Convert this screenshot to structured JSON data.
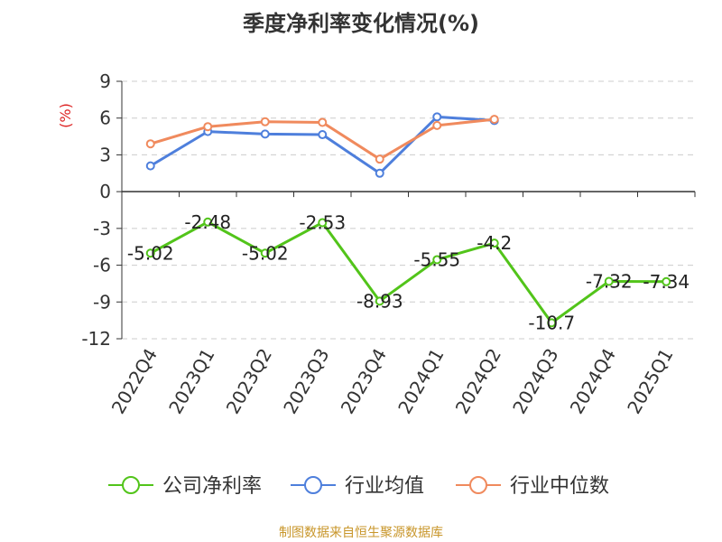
{
  "chart_data": {
    "type": "line",
    "title": "季度净利率变化情况(%)",
    "unit_label": "(%)",
    "categories": [
      "2022Q4",
      "2023Q1",
      "2023Q2",
      "2023Q3",
      "2023Q4",
      "2024Q1",
      "2024Q2",
      "2024Q3",
      "2024Q4",
      "2025Q1"
    ],
    "yticks": [
      9,
      6,
      3,
      0,
      -3,
      -6,
      -9,
      -12
    ],
    "ylim": [
      -12,
      9
    ],
    "grid": true,
    "legend_position": "bottom",
    "series": [
      {
        "name": "公司净利率",
        "color": "#52c41a",
        "values": [
          -5.02,
          -2.48,
          -5.02,
          -2.53,
          -8.93,
          -5.55,
          -4.2,
          -10.7,
          -7.32,
          -7.34
        ],
        "labels": [
          "-5.02",
          "-2.48",
          "-5.02",
          "-2.53",
          "-8.93",
          "-5.55",
          "-4.2",
          "-10.7",
          "-7.32",
          "-7.34"
        ]
      },
      {
        "name": "行业均值",
        "color": "#4e7fdc",
        "values": [
          2.1,
          4.9,
          4.7,
          4.65,
          1.5,
          6.1,
          5.8,
          null,
          null,
          null
        ]
      },
      {
        "name": "行业中位数",
        "color": "#f08a5d",
        "values": [
          3.9,
          5.3,
          5.7,
          5.65,
          2.65,
          5.4,
          5.9,
          null,
          null,
          null
        ]
      }
    ]
  },
  "source_text": "制图数据来自恒生聚源数据库",
  "colors": {
    "axis": "#333333",
    "grid": "#cccccc",
    "unit": "#dd2222",
    "source": "#c8962a"
  }
}
